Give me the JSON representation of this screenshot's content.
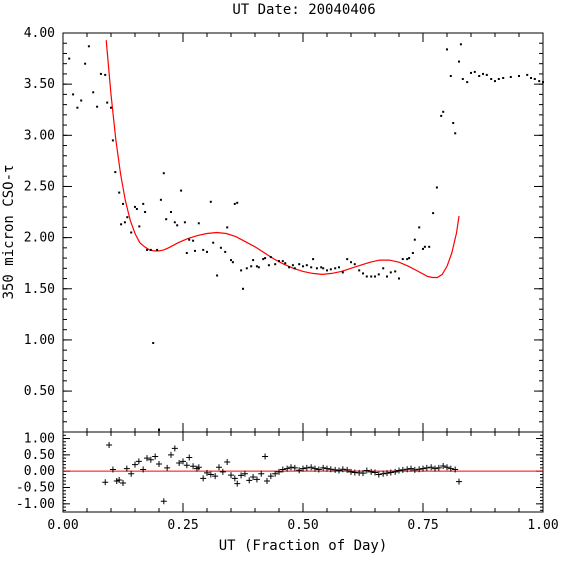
{
  "chart_data": {
    "type": "scatter",
    "title": "UT Date: 20040406",
    "xlabel": "UT (Fraction of Day)",
    "ylabel": "350 micron CSO-τ",
    "colors": {
      "points": "#000000",
      "fit": "#ff0000",
      "axes": "#000000"
    },
    "main_panel": {
      "xlim": [
        0.0,
        1.0
      ],
      "ylim": [
        0.1,
        4.0
      ],
      "xticks": [
        0.0,
        0.25,
        0.5,
        0.75,
        1.0
      ],
      "xtick_labels": [
        "0.00",
        "0.25",
        "0.50",
        "0.75",
        "1.00"
      ],
      "yticks": [
        0.5,
        1.0,
        1.5,
        2.0,
        2.5,
        3.0,
        3.5,
        4.0
      ],
      "ytick_labels": [
        "0.50",
        "1.00",
        "1.50",
        "2.00",
        "2.50",
        "3.00",
        "3.50",
        "4.00"
      ],
      "grid": false,
      "series": [
        {
          "type": "scatter",
          "marker": "dot",
          "x": [
            0.013,
            0.021,
            0.03,
            0.038,
            0.046,
            0.054,
            0.063,
            0.071,
            0.079,
            0.088,
            0.092,
            0.1,
            0.104,
            0.109,
            0.117,
            0.121,
            0.125,
            0.129,
            0.134,
            0.142,
            0.15,
            0.154,
            0.159,
            0.167,
            0.171,
            0.175,
            0.183,
            0.188,
            0.196,
            0.2,
            0.204,
            0.21,
            0.215,
            0.225,
            0.233,
            0.238,
            0.246,
            0.254,
            0.258,
            0.263,
            0.271,
            0.275,
            0.283,
            0.292,
            0.3,
            0.308,
            0.313,
            0.321,
            0.329,
            0.338,
            0.342,
            0.35,
            0.354,
            0.358,
            0.363,
            0.371,
            0.375,
            0.383,
            0.392,
            0.396,
            0.404,
            0.408,
            0.417,
            0.421,
            0.429,
            0.433,
            0.442,
            0.45,
            0.458,
            0.463,
            0.471,
            0.479,
            0.483,
            0.492,
            0.5,
            0.508,
            0.517,
            0.521,
            0.529,
            0.538,
            0.542,
            0.55,
            0.558,
            0.567,
            0.575,
            0.583,
            0.592,
            0.6,
            0.608,
            0.617,
            0.625,
            0.633,
            0.642,
            0.65,
            0.658,
            0.667,
            0.675,
            0.683,
            0.692,
            0.7,
            0.708,
            0.717,
            0.721,
            0.729,
            0.733,
            0.742,
            0.75,
            0.754,
            0.763,
            0.771,
            0.779,
            0.788,
            0.792,
            0.8,
            0.808,
            0.813,
            0.817,
            0.825,
            0.829,
            0.833,
            0.842,
            0.85,
            0.858,
            0.867,
            0.875,
            0.883,
            0.892,
            0.9,
            0.908,
            0.917,
            0.933,
            0.95,
            0.967,
            0.975,
            0.983,
            0.992,
            1.0
          ],
          "y": [
            3.75,
            3.4,
            3.27,
            3.34,
            3.7,
            3.87,
            3.42,
            3.28,
            3.6,
            3.59,
            3.32,
            3.27,
            2.95,
            2.64,
            2.44,
            2.13,
            2.33,
            2.15,
            2.2,
            2.05,
            2.3,
            2.28,
            2.11,
            2.33,
            2.25,
            1.88,
            1.88,
            0.97,
            1.88,
            0.12,
            2.37,
            2.63,
            2.18,
            2.25,
            2.15,
            2.12,
            2.46,
            2.15,
            1.85,
            1.98,
            1.97,
            1.87,
            2.14,
            1.88,
            1.86,
            2.35,
            1.95,
            1.63,
            1.9,
            1.86,
            2.1,
            1.78,
            1.76,
            2.33,
            2.34,
            1.68,
            1.5,
            1.7,
            1.72,
            1.78,
            1.72,
            1.71,
            1.79,
            1.8,
            1.73,
            1.81,
            1.74,
            1.77,
            1.77,
            1.75,
            1.71,
            1.73,
            1.7,
            1.74,
            1.72,
            1.73,
            1.71,
            1.79,
            1.7,
            1.71,
            1.7,
            1.68,
            1.69,
            1.7,
            1.71,
            1.66,
            1.79,
            1.76,
            1.74,
            1.68,
            1.65,
            1.62,
            1.62,
            1.62,
            1.64,
            1.7,
            1.62,
            1.66,
            1.67,
            1.6,
            1.79,
            1.79,
            1.8,
            1.85,
            1.98,
            2.1,
            1.89,
            1.91,
            1.91,
            2.24,
            2.49,
            3.19,
            3.23,
            3.84,
            3.58,
            3.12,
            3.02,
            3.72,
            3.89,
            3.55,
            3.52,
            3.61,
            3.62,
            3.58,
            3.6,
            3.59,
            3.55,
            3.53,
            3.55,
            3.56,
            3.57,
            3.58,
            3.59,
            3.56,
            3.55,
            3.53,
            3.52
          ]
        },
        {
          "type": "line",
          "name": "",
          "x": [
            0.09,
            0.1,
            0.11,
            0.12,
            0.13,
            0.14,
            0.15,
            0.16,
            0.17,
            0.18,
            0.19,
            0.2,
            0.21,
            0.22,
            0.24,
            0.26,
            0.28,
            0.3,
            0.32,
            0.34,
            0.36,
            0.38,
            0.4,
            0.42,
            0.44,
            0.46,
            0.48,
            0.5,
            0.52,
            0.54,
            0.56,
            0.58,
            0.6,
            0.62,
            0.64,
            0.66,
            0.68,
            0.7,
            0.72,
            0.74,
            0.76,
            0.77,
            0.78,
            0.79,
            0.8,
            0.81,
            0.82,
            0.825
          ],
          "y": [
            3.93,
            3.4,
            2.96,
            2.62,
            2.36,
            2.17,
            2.04,
            1.95,
            1.91,
            1.88,
            1.87,
            1.87,
            1.88,
            1.9,
            1.95,
            1.99,
            2.02,
            2.04,
            2.05,
            2.04,
            2.01,
            1.96,
            1.91,
            1.85,
            1.79,
            1.74,
            1.7,
            1.67,
            1.65,
            1.64,
            1.65,
            1.67,
            1.7,
            1.73,
            1.76,
            1.78,
            1.78,
            1.76,
            1.72,
            1.67,
            1.62,
            1.61,
            1.61,
            1.64,
            1.72,
            1.85,
            2.05,
            2.21
          ]
        }
      ]
    },
    "residual_panel": {
      "xlim": [
        0.0,
        1.0
      ],
      "ylim": [
        -1.25,
        1.2
      ],
      "yticks": [
        -1.0,
        -0.5,
        0.0,
        0.5,
        1.0
      ],
      "ytick_labels": [
        "-1.00",
        "-0.50",
        "0.00",
        "0.50",
        "1.00"
      ],
      "zero_line": 0.0,
      "series": [
        {
          "type": "scatter",
          "marker": "plus",
          "x": [
            0.088,
            0.096,
            0.104,
            0.112,
            0.117,
            0.125,
            0.133,
            0.142,
            0.15,
            0.158,
            0.167,
            0.175,
            0.183,
            0.192,
            0.2,
            0.21,
            0.217,
            0.225,
            0.233,
            0.242,
            0.25,
            0.258,
            0.263,
            0.271,
            0.279,
            0.283,
            0.292,
            0.3,
            0.308,
            0.317,
            0.325,
            0.333,
            0.342,
            0.35,
            0.358,
            0.363,
            0.371,
            0.379,
            0.388,
            0.396,
            0.404,
            0.413,
            0.421,
            0.425,
            0.433,
            0.442,
            0.45,
            0.458,
            0.467,
            0.475,
            0.483,
            0.492,
            0.5,
            0.508,
            0.517,
            0.525,
            0.533,
            0.542,
            0.55,
            0.558,
            0.567,
            0.575,
            0.583,
            0.592,
            0.6,
            0.608,
            0.617,
            0.625,
            0.633,
            0.642,
            0.65,
            0.658,
            0.667,
            0.675,
            0.683,
            0.692,
            0.7,
            0.708,
            0.717,
            0.725,
            0.733,
            0.742,
            0.75,
            0.758,
            0.767,
            0.775,
            0.783,
            0.792,
            0.8,
            0.808,
            0.817,
            0.825
          ],
          "y": [
            -0.34,
            0.8,
            0.05,
            -0.3,
            -0.27,
            -0.36,
            0.08,
            -0.08,
            0.2,
            0.3,
            0.05,
            0.4,
            0.35,
            0.45,
            0.22,
            -0.92,
            0.1,
            0.5,
            0.7,
            0.25,
            0.3,
            0.18,
            0.42,
            0.15,
            0.08,
            0.12,
            -0.22,
            -0.05,
            -0.1,
            -0.15,
            0.12,
            -0.02,
            0.28,
            -0.12,
            -0.22,
            -0.38,
            -0.13,
            -0.08,
            -0.28,
            -0.18,
            -0.25,
            -0.08,
            0.45,
            -0.3,
            -0.15,
            -0.08,
            -0.02,
            0.05,
            0.08,
            0.12,
            0.1,
            0.03,
            0.08,
            0.1,
            0.12,
            0.08,
            0.05,
            0.1,
            0.08,
            0.06,
            0.04,
            0.02,
            0.06,
            0.04,
            -0.02,
            -0.04,
            -0.05,
            -0.06,
            0.02,
            -0.02,
            -0.04,
            -0.1,
            -0.08,
            -0.06,
            -0.04,
            -0.02,
            0.02,
            0.04,
            0.06,
            0.08,
            0.04,
            0.06,
            0.08,
            0.1,
            0.12,
            0.08,
            0.1,
            0.16,
            0.12,
            0.08,
            0.05,
            -0.32
          ]
        }
      ]
    }
  }
}
